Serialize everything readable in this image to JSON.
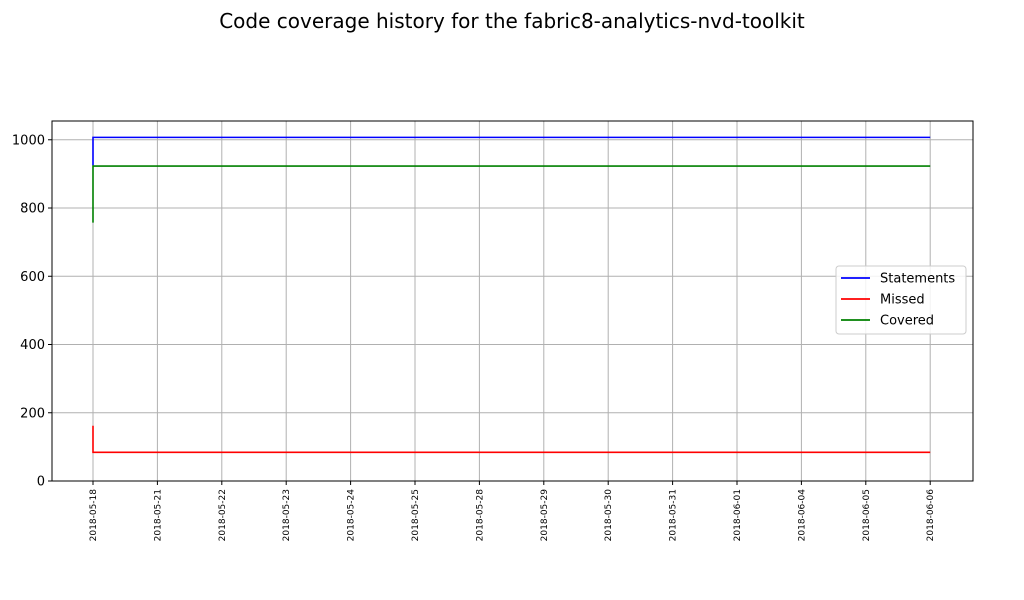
{
  "chart_data": {
    "type": "line",
    "title": "Code coverage history for the fabric8-analytics-nvd-toolkit",
    "xlabel": "",
    "ylabel": "",
    "categories": [
      "2018-05-18",
      "2018-05-21",
      "2018-05-22",
      "2018-05-23",
      "2018-05-24",
      "2018-05-25",
      "2018-05-28",
      "2018-05-29",
      "2018-05-30",
      "2018-05-31",
      "2018-06-01",
      "2018-06-04",
      "2018-06-05",
      "2018-06-06"
    ],
    "yticks": [
      0,
      200,
      400,
      600,
      800,
      1000
    ],
    "ylim": [
      0,
      1055
    ],
    "grid": true,
    "legend_position": "center-right",
    "series": [
      {
        "name": "Statements",
        "color": "#0000ff",
        "values": [
          [
            925,
            1007
          ],
          1007,
          1007,
          1007,
          1007,
          1007,
          1007,
          1007,
          1007,
          1007,
          1007,
          1007,
          1007,
          1007
        ]
      },
      {
        "name": "Missed",
        "color": "#ff0000",
        "values": [
          [
            162,
            84
          ],
          84,
          84,
          84,
          84,
          84,
          84,
          84,
          84,
          84,
          84,
          84,
          84,
          84
        ]
      },
      {
        "name": "Covered",
        "color": "#008000",
        "values": [
          [
            757,
            923
          ],
          923,
          923,
          923,
          923,
          923,
          923,
          923,
          923,
          923,
          923,
          923,
          923,
          923
        ]
      }
    ]
  }
}
